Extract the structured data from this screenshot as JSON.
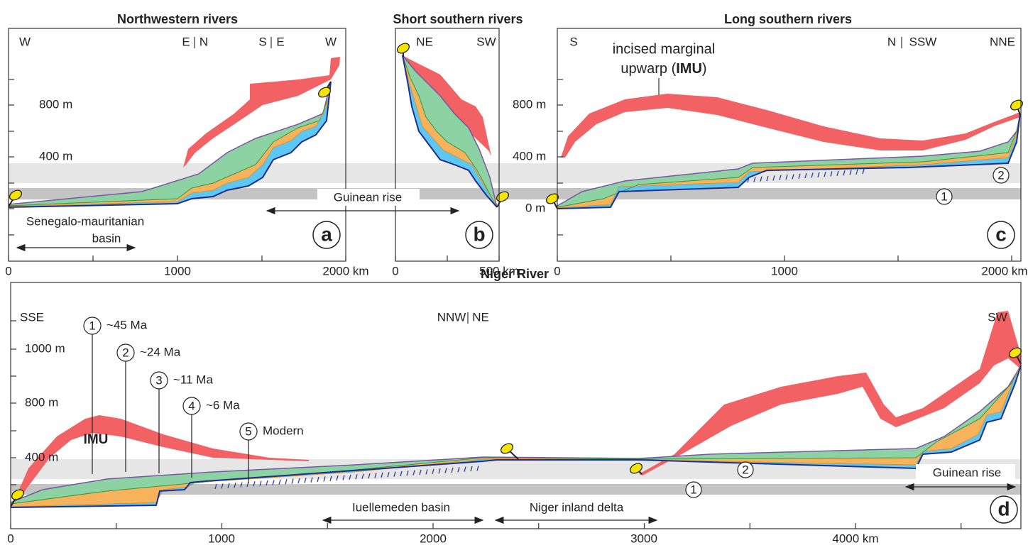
{
  "panel_a": {
    "title": "Northwestern rivers",
    "letter": "a",
    "directions": [
      "W",
      "E",
      "N",
      "S",
      "E",
      "W"
    ],
    "y_ticks": [
      "800 m",
      "400 m"
    ],
    "x_ticks": [
      "0",
      "1000",
      "2000 km"
    ],
    "basin_label": [
      "Senegalo-mauritanian",
      "basin"
    ]
  },
  "guinean_rise_label": "Guinean rise",
  "panel_b": {
    "title": "Short southern rivers",
    "letter": "b",
    "directions": [
      "NE",
      "SW"
    ],
    "x_ticks": [
      "0",
      "500 km"
    ]
  },
  "panel_c": {
    "title": "Long southern rivers",
    "letter": "c",
    "directions": [
      "S",
      "N",
      "SSW",
      "NNE"
    ],
    "y_ticks": [
      "800 m",
      "400 m",
      "0 m"
    ],
    "x_ticks": [
      "0",
      "1000",
      "2000 km"
    ],
    "imu_label": [
      "incised marginal",
      "upwarp (",
      "IMU",
      ")"
    ],
    "levels": [
      "2",
      "1"
    ]
  },
  "panel_d": {
    "title": "Niger River",
    "letter": "d",
    "directions": [
      "SSE",
      "NNW",
      "NE",
      "SW"
    ],
    "y_ticks": [
      "1000 m",
      "800 m",
      "400 m"
    ],
    "x_ticks": [
      "0",
      "1000",
      "2000",
      "3000",
      "4000 km"
    ],
    "stages": [
      {
        "number": "1",
        "age": "~45 Ma"
      },
      {
        "number": "2",
        "age": "~24 Ma"
      },
      {
        "number": "3",
        "age": "~11 Ma"
      },
      {
        "number": "4",
        "age": "~6 Ma"
      },
      {
        "number": "5",
        "age": "Modern"
      }
    ],
    "imu": "IMU",
    "levels": [
      "2",
      "1"
    ],
    "regions": [
      "Iuellemeden basin",
      "Niger inland delta",
      "Guinean rise"
    ]
  }
}
